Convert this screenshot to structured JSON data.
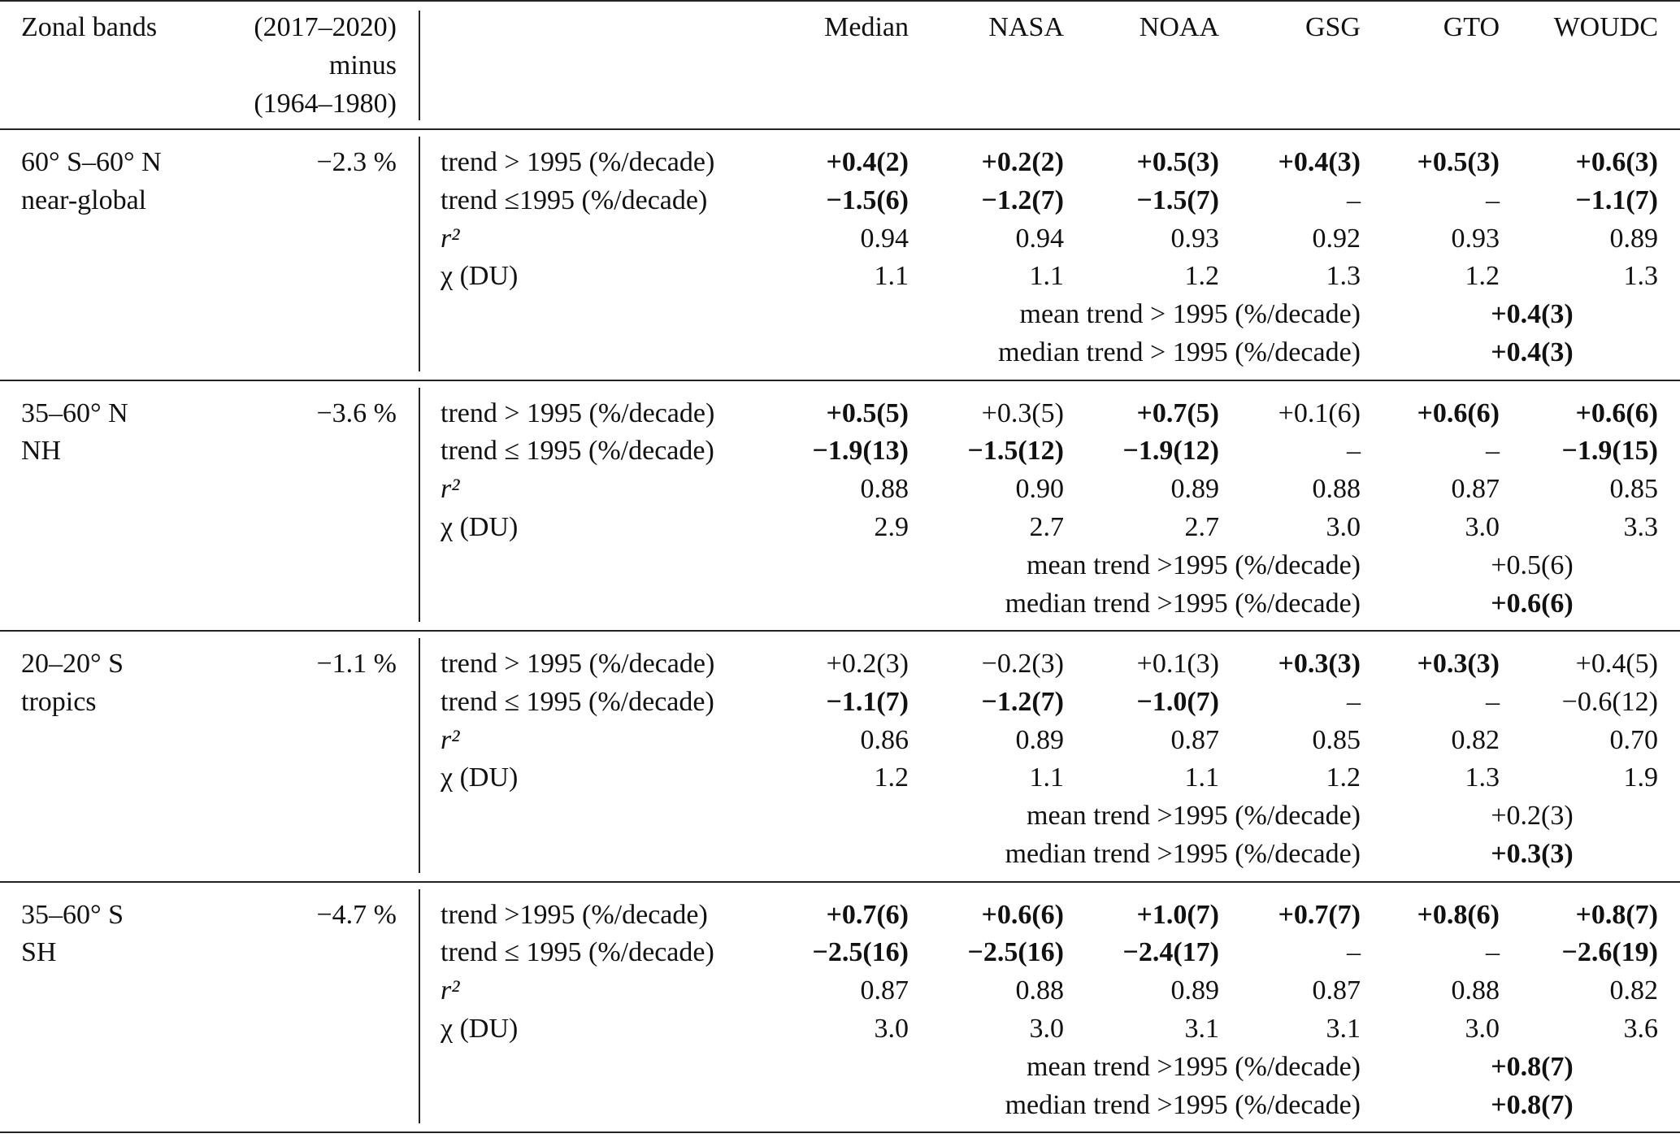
{
  "header": {
    "zonal": "Zonal bands",
    "difference": [
      "(2017–2020)",
      "minus",
      "(1964–1980)"
    ],
    "columns": [
      "Median",
      "NASA",
      "NOAA",
      "GSG",
      "GTO",
      "WOUDC"
    ]
  },
  "sections": [
    {
      "band": [
        "60° S–60° N",
        "near-global"
      ],
      "difference": "−2.3 %",
      "rows": [
        {
          "label": "trend > 1995 (%/decade)",
          "cells": [
            {
              "text": "+0.4(2)",
              "bold": true
            },
            {
              "text": "+0.2(2)",
              "bold": true
            },
            {
              "text": "+0.5(3)",
              "bold": true
            },
            {
              "text": "+0.4(3)",
              "bold": true
            },
            {
              "text": "+0.5(3)",
              "bold": true
            },
            {
              "text": "+0.6(3)",
              "bold": true
            }
          ]
        },
        {
          "label": "trend ≤1995 (%/decade)",
          "cells": [
            {
              "text": "−1.5(6)",
              "bold": true
            },
            {
              "text": "−1.2(7)",
              "bold": true
            },
            {
              "text": "−1.5(7)",
              "bold": true
            },
            {
              "text": "–"
            },
            {
              "text": "–"
            },
            {
              "text": "−1.1(7)",
              "bold": true
            }
          ]
        },
        {
          "label": "r²",
          "italic": true,
          "cells": [
            {
              "text": "0.94"
            },
            {
              "text": "0.94"
            },
            {
              "text": "0.93"
            },
            {
              "text": "0.92"
            },
            {
              "text": "0.93"
            },
            {
              "text": "0.89"
            }
          ]
        },
        {
          "label": "χ (DU)",
          "cells": [
            {
              "text": "1.1"
            },
            {
              "text": "1.1"
            },
            {
              "text": "1.2"
            },
            {
              "text": "1.3"
            },
            {
              "text": "1.2"
            },
            {
              "text": "1.3"
            }
          ]
        }
      ],
      "summary": [
        {
          "label": "mean trend > 1995 (%/decade)",
          "text": "+0.4(3)",
          "bold": true
        },
        {
          "label": "median trend > 1995 (%/decade)",
          "text": "+0.4(3)",
          "bold": true
        }
      ]
    },
    {
      "band": [
        "35–60° N",
        "NH"
      ],
      "difference": "−3.6 %",
      "rows": [
        {
          "label": "trend > 1995 (%/decade)",
          "cells": [
            {
              "text": "+0.5(5)",
              "bold": true
            },
            {
              "text": "+0.3(5)"
            },
            {
              "text": "+0.7(5)",
              "bold": true
            },
            {
              "text": "+0.1(6)"
            },
            {
              "text": "+0.6(6)",
              "bold": true
            },
            {
              "text": "+0.6(6)",
              "bold": true
            }
          ]
        },
        {
          "label": "trend ≤ 1995 (%/decade)",
          "cells": [
            {
              "text": "−1.9(13)",
              "bold": true
            },
            {
              "text": "−1.5(12)",
              "bold": true
            },
            {
              "text": "−1.9(12)",
              "bold": true
            },
            {
              "text": "–"
            },
            {
              "text": "–"
            },
            {
              "text": "−1.9(15)",
              "bold": true
            }
          ]
        },
        {
          "label": "r²",
          "italic": true,
          "cells": [
            {
              "text": "0.88"
            },
            {
              "text": "0.90"
            },
            {
              "text": "0.89"
            },
            {
              "text": "0.88"
            },
            {
              "text": "0.87"
            },
            {
              "text": "0.85"
            }
          ]
        },
        {
          "label": "χ (DU)",
          "cells": [
            {
              "text": "2.9"
            },
            {
              "text": "2.7"
            },
            {
              "text": "2.7"
            },
            {
              "text": "3.0"
            },
            {
              "text": "3.0"
            },
            {
              "text": "3.3"
            }
          ]
        }
      ],
      "summary": [
        {
          "label": "mean trend >1995 (%/decade)",
          "text": "+0.5(6)"
        },
        {
          "label": "median trend >1995 (%/decade)",
          "text": "+0.6(6)",
          "bold": true
        }
      ]
    },
    {
      "band": [
        "20–20° S",
        "tropics"
      ],
      "difference": "−1.1 %",
      "rows": [
        {
          "label": "trend > 1995 (%/decade)",
          "cells": [
            {
              "text": "+0.2(3)"
            },
            {
              "text": "−0.2(3)"
            },
            {
              "text": "+0.1(3)"
            },
            {
              "text": "+0.3(3)",
              "bold": true
            },
            {
              "text": "+0.3(3)",
              "bold": true
            },
            {
              "text": "+0.4(5)"
            }
          ]
        },
        {
          "label": "trend ≤ 1995 (%/decade)",
          "cells": [
            {
              "text": "−1.1(7)",
              "bold": true
            },
            {
              "text": "−1.2(7)",
              "bold": true
            },
            {
              "text": "−1.0(7)",
              "bold": true
            },
            {
              "text": "–"
            },
            {
              "text": "–"
            },
            {
              "text": "−0.6(12)"
            }
          ]
        },
        {
          "label": "r²",
          "italic": true,
          "cells": [
            {
              "text": "0.86"
            },
            {
              "text": "0.89"
            },
            {
              "text": "0.87"
            },
            {
              "text": "0.85"
            },
            {
              "text": "0.82"
            },
            {
              "text": "0.70"
            }
          ]
        },
        {
          "label": "χ (DU)",
          "cells": [
            {
              "text": "1.2"
            },
            {
              "text": "1.1"
            },
            {
              "text": "1.1"
            },
            {
              "text": "1.2"
            },
            {
              "text": "1.3"
            },
            {
              "text": "1.9"
            }
          ]
        }
      ],
      "summary": [
        {
          "label": "mean trend >1995 (%/decade)",
          "text": "+0.2(3)"
        },
        {
          "label": "median trend >1995 (%/decade)",
          "text": "+0.3(3)",
          "bold": true
        }
      ]
    },
    {
      "band": [
        "35–60° S",
        "SH"
      ],
      "difference": "−4.7 %",
      "rows": [
        {
          "label": "trend >1995 (%/decade)",
          "cells": [
            {
              "text": "+0.7(6)",
              "bold": true
            },
            {
              "text": "+0.6(6)",
              "bold": true
            },
            {
              "text": "+1.0(7)",
              "bold": true
            },
            {
              "text": "+0.7(7)",
              "bold": true
            },
            {
              "text": "+0.8(6)",
              "bold": true
            },
            {
              "text": "+0.8(7)",
              "bold": true
            }
          ]
        },
        {
          "label": "trend ≤ 1995 (%/decade)",
          "cells": [
            {
              "text": "−2.5(16)",
              "bold": true
            },
            {
              "text": "−2.5(16)",
              "bold": true
            },
            {
              "text": "−2.4(17)",
              "bold": true
            },
            {
              "text": "–"
            },
            {
              "text": "–"
            },
            {
              "text": "−2.6(19)",
              "bold": true
            }
          ]
        },
        {
          "label": "r²",
          "italic": true,
          "cells": [
            {
              "text": "0.87"
            },
            {
              "text": "0.88"
            },
            {
              "text": "0.89"
            },
            {
              "text": "0.87"
            },
            {
              "text": "0.88"
            },
            {
              "text": "0.82"
            }
          ]
        },
        {
          "label": "χ (DU)",
          "cells": [
            {
              "text": "3.0"
            },
            {
              "text": "3.0"
            },
            {
              "text": "3.1"
            },
            {
              "text": "3.1"
            },
            {
              "text": "3.0"
            },
            {
              "text": "3.6"
            }
          ]
        }
      ],
      "summary": [
        {
          "label": "mean trend >1995 (%/decade)",
          "text": "+0.8(7)",
          "bold": true
        },
        {
          "label": "median trend >1995 (%/decade)",
          "text": "+0.8(7)",
          "bold": true
        }
      ]
    }
  ]
}
